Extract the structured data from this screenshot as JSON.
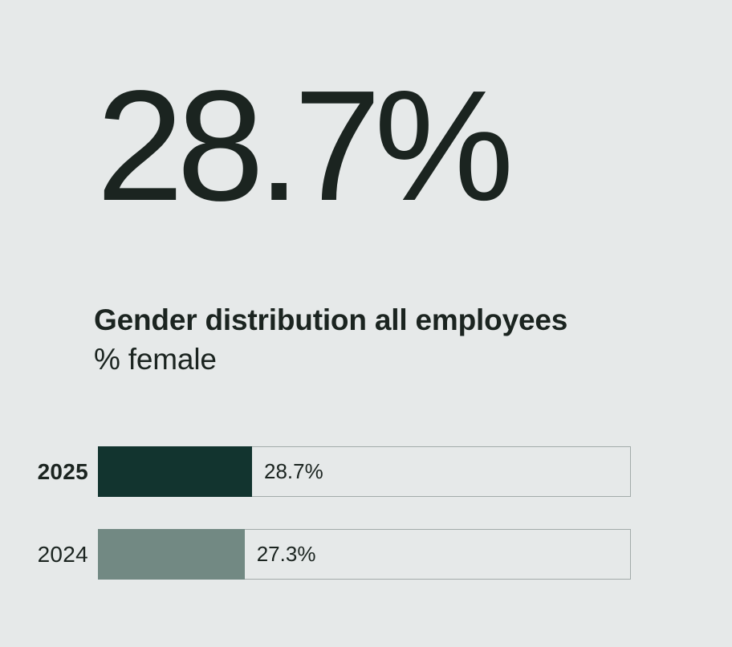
{
  "page": {
    "background_color": "#e6e9e9",
    "text_color": "#1b2420"
  },
  "headline": {
    "value": "28.7%"
  },
  "chart_data": {
    "type": "bar",
    "orientation": "horizontal",
    "title": "Gender distribution all employees",
    "subtitle": "% female",
    "unit": "%",
    "xlim": [
      0,
      100
    ],
    "grid": false,
    "legend": false,
    "categories": [
      "2025",
      "2024"
    ],
    "values": [
      28.7,
      27.3
    ],
    "track_border_color": "#a3abaa",
    "rows": [
      {
        "label": "2025",
        "value": 28.7,
        "display": "28.7%",
        "color": "#12342f",
        "emphasis": true
      },
      {
        "label": "2024",
        "value": 27.3,
        "display": "27.3%",
        "color": "#728983",
        "emphasis": false
      }
    ]
  }
}
